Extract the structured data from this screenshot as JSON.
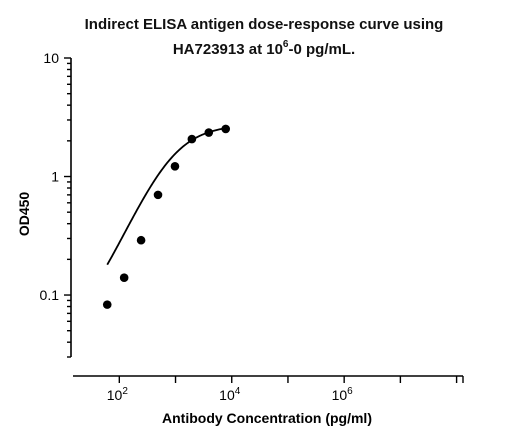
{
  "chart_data": {
    "type": "scatter",
    "title": {
      "line1": "Indirect ELISA antigen dose-response curve using",
      "line2_prefix": "HA723913 at 10",
      "line2_superscript": "6",
      "line2_suffix": "-0 pg/mL."
    },
    "xlabel": "Antibody Concentration (pg/ml)",
    "ylabel": "OD450",
    "x_scale": "log",
    "y_scale": "log",
    "xlim": [
      15,
      130000000
    ],
    "ylim": [
      0.03,
      10
    ],
    "x_tick_labels": [
      {
        "value": 100,
        "base": "10",
        "exp": "2"
      },
      {
        "value": 10000,
        "base": "10",
        "exp": "4"
      },
      {
        "value": 1000000,
        "base": "10",
        "exp": "6"
      }
    ],
    "y_tick_labels": [
      {
        "value": 0.1,
        "label": "0.1"
      },
      {
        "value": 1,
        "label": "1"
      },
      {
        "value": 10,
        "label": "10"
      }
    ],
    "grid": false,
    "series": [
      {
        "points": [
          {
            "x": 61,
            "y": 0.083
          },
          {
            "x": 122,
            "y": 0.14
          },
          {
            "x": 244,
            "y": 0.29
          },
          {
            "x": 488,
            "y": 0.7
          },
          {
            "x": 977,
            "y": 1.22
          },
          {
            "x": 1953,
            "y": 2.07
          },
          {
            "x": 3906,
            "y": 2.35
          },
          {
            "x": 7813,
            "y": 2.52
          }
        ],
        "fit": {
          "model": "4PL",
          "bottom": 0.04,
          "top": 2.75,
          "ec50": 800,
          "hill": 1.13
        }
      }
    ],
    "colors": {
      "marker": "#000000",
      "curve": "#000000"
    }
  }
}
